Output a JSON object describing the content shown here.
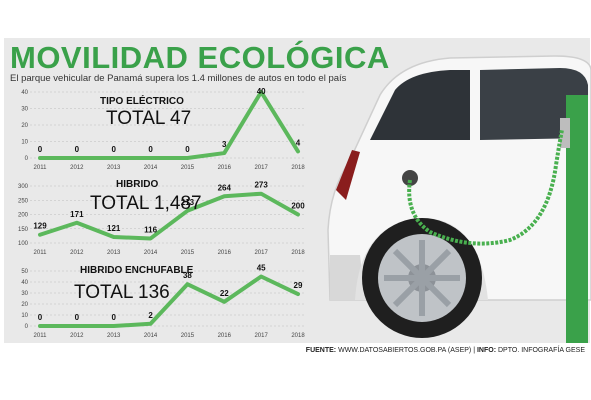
{
  "header": {
    "title": "MOVILIDAD ECOLÓGICA",
    "subtitle": "El parque vehicular de Panamá supera los 1.4 millones de autos en todo el país"
  },
  "footer": {
    "source_label": "FUENTE:",
    "source_text": "WWW.DATOSABIERTOS.GOB.PA (ASEP)",
    "info_label": "INFO:",
    "info_text": "DPTO. INFOGRAFÍA GESE"
  },
  "colors": {
    "title_green": "#3aa14a",
    "line_green": "#5cb85c",
    "background": "#e9e9e9"
  },
  "chart_data": [
    {
      "type": "line",
      "title": "TIPO ELÉCTRICO",
      "total": "TOTAL 47",
      "x": [
        "2011",
        "2012",
        "2013",
        "2014",
        "2015",
        "2016",
        "2017",
        "2018"
      ],
      "values": [
        0,
        0,
        0,
        0,
        0,
        3,
        40,
        4
      ],
      "ylim": [
        0,
        40
      ],
      "yticks": [
        0,
        10,
        20,
        30,
        40
      ],
      "grid": true
    },
    {
      "type": "line",
      "title": "HIBRIDO",
      "total": "TOTAL 1,487",
      "x": [
        "2011",
        "2012",
        "2013",
        "2014",
        "2015",
        "2016",
        "2017",
        "2018"
      ],
      "values": [
        129,
        171,
        121,
        116,
        213,
        264,
        273,
        200
      ],
      "ylim": [
        100,
        300
      ],
      "yticks": [
        100,
        150,
        200,
        250,
        300
      ],
      "grid": true
    },
    {
      "type": "line",
      "title": "HIBRIDO ENCHUFABLE",
      "total": "TOTAL 136",
      "x": [
        "2011",
        "2012",
        "2013",
        "2014",
        "2015",
        "2016",
        "2017",
        "2018"
      ],
      "values": [
        0,
        0,
        0,
        2,
        38,
        22,
        45,
        29
      ],
      "ylim": [
        0,
        50
      ],
      "yticks": [
        0,
        10,
        20,
        30,
        40,
        50
      ],
      "grid": true
    }
  ]
}
